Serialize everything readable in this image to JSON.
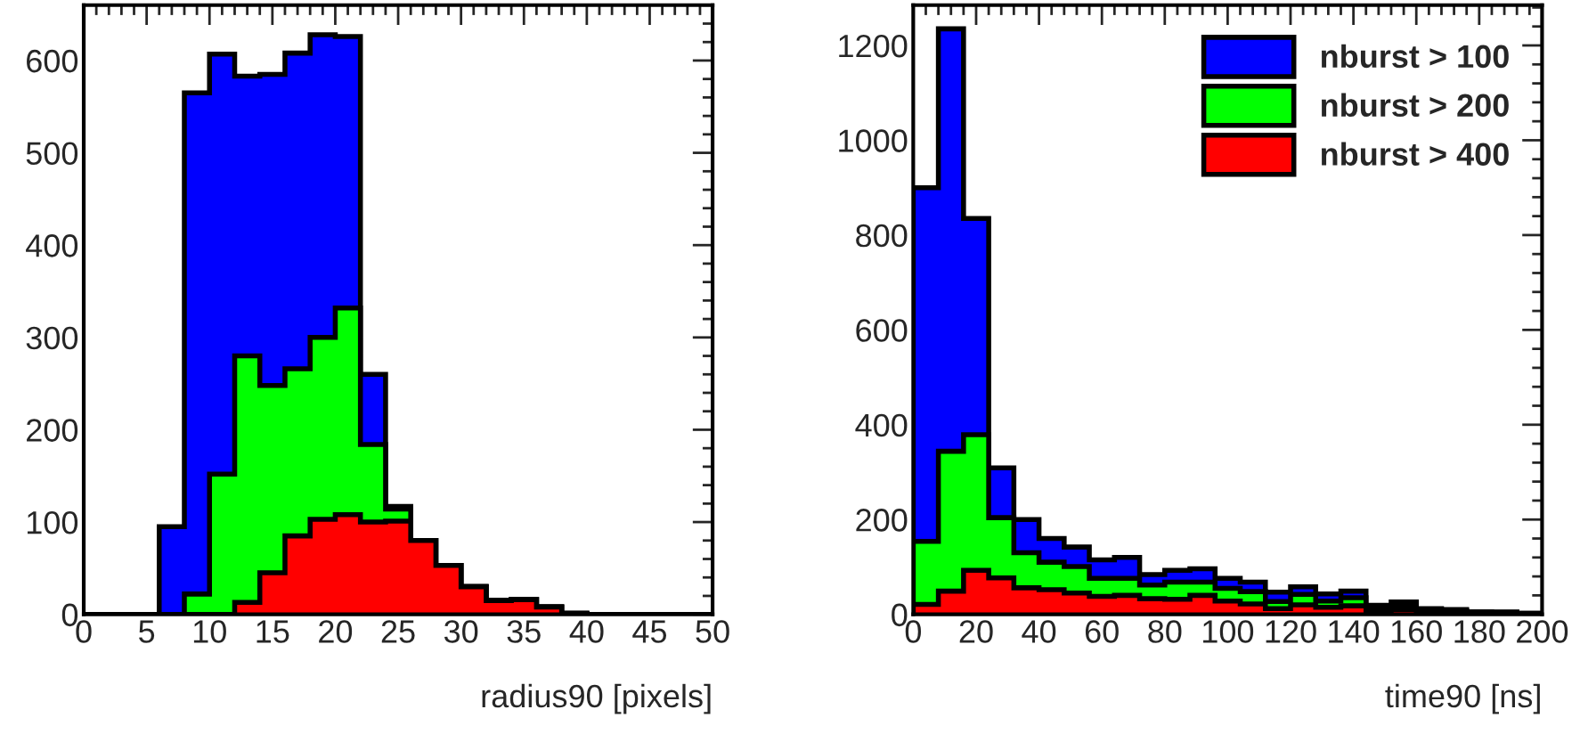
{
  "chart_data": [
    {
      "type": "histogram",
      "xlabel": "radius90 [pixels]",
      "bins": [
        0,
        2,
        4,
        6,
        8,
        10,
        12,
        14,
        16,
        18,
        20,
        22,
        24,
        26,
        28,
        30,
        32,
        34,
        36,
        38,
        40,
        42,
        44,
        46,
        48,
        50
      ],
      "xlim": [
        0,
        50
      ],
      "xticks": [
        0,
        5,
        10,
        15,
        20,
        25,
        30,
        35,
        40,
        45,
        50
      ],
      "ylim": [
        0,
        660
      ],
      "yticks": [
        0,
        100,
        200,
        300,
        400,
        500,
        600
      ],
      "legend": false,
      "series": [
        {
          "color": "#0000ff",
          "values": [
            0,
            0,
            0,
            95,
            565,
            607,
            583,
            585,
            608,
            628,
            626,
            260,
            117,
            80,
            53,
            30,
            15,
            16,
            8,
            1,
            0,
            0,
            0,
            0,
            0
          ]
        },
        {
          "color": "#00ff00",
          "values": [
            0,
            0,
            0,
            0,
            22,
            152,
            280,
            248,
            266,
            300,
            332,
            184,
            114,
            80,
            53,
            30,
            15,
            16,
            8,
            1,
            0,
            0,
            0,
            0,
            0
          ]
        },
        {
          "color": "#ff0000",
          "values": [
            0,
            0,
            0,
            0,
            0,
            0,
            13,
            45,
            85,
            103,
            108,
            100,
            101,
            80,
            53,
            30,
            15,
            16,
            8,
            1,
            0,
            0,
            0,
            0,
            0
          ]
        }
      ]
    },
    {
      "type": "histogram",
      "xlabel": "time90 [ns]",
      "bins": [
        0,
        8,
        16,
        24,
        32,
        40,
        48,
        56,
        64,
        72,
        80,
        88,
        96,
        104,
        112,
        120,
        128,
        136,
        144,
        152,
        160,
        168,
        176,
        184,
        192,
        200
      ],
      "xlim": [
        0,
        200
      ],
      "xticks": [
        0,
        20,
        40,
        60,
        80,
        100,
        120,
        140,
        160,
        180,
        200
      ],
      "ylim": [
        0,
        1285
      ],
      "yticks": [
        0,
        200,
        400,
        600,
        800,
        1000,
        1200
      ],
      "legend": "top right",
      "series": [
        {
          "name": "nburst > 100",
          "color": "#0000ff",
          "values": [
            900,
            1235,
            835,
            309,
            200,
            160,
            142,
            115,
            120,
            84,
            93,
            96,
            76,
            68,
            47,
            58,
            43,
            49,
            19,
            26,
            12,
            10,
            5,
            5,
            2
          ]
        },
        {
          "name": "nburst > 200",
          "color": "#00ff00",
          "values": [
            154,
            344,
            379,
            204,
            130,
            110,
            101,
            76,
            76,
            62,
            68,
            68,
            55,
            48,
            27,
            42,
            28,
            35,
            12,
            18,
            10,
            8,
            5,
            4,
            2
          ]
        },
        {
          "name": "nburst > 400",
          "color": "#ff0000",
          "values": [
            21,
            49,
            93,
            77,
            56,
            52,
            45,
            38,
            40,
            33,
            32,
            40,
            28,
            22,
            12,
            20,
            15,
            18,
            8,
            10,
            6,
            5,
            3,
            2,
            1
          ]
        }
      ]
    }
  ]
}
